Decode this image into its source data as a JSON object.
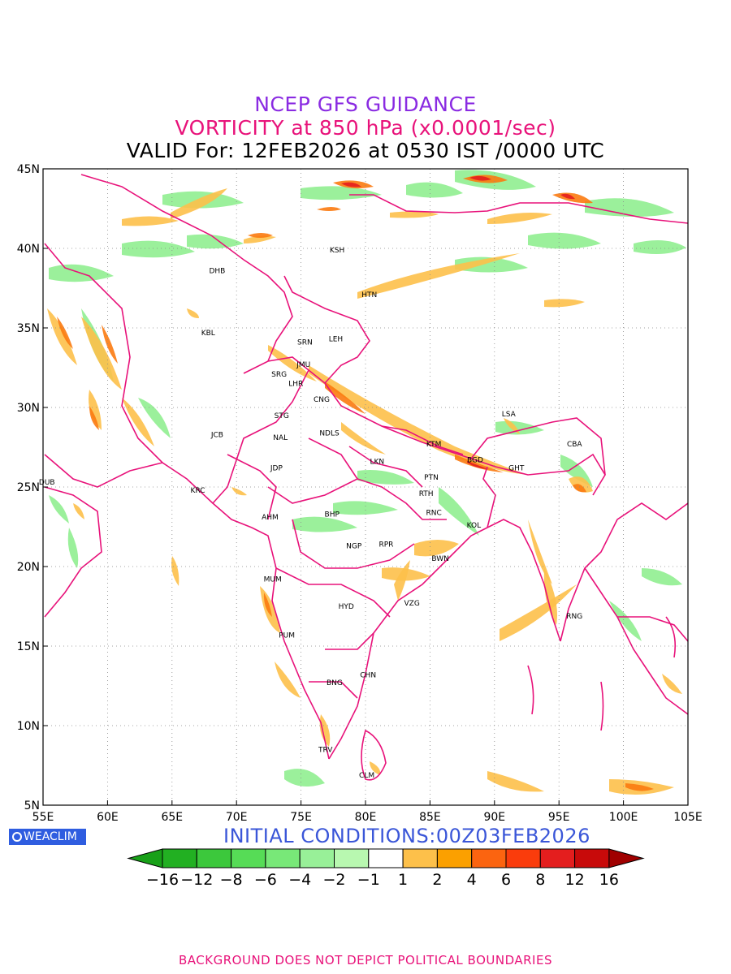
{
  "header": {
    "line1": "NCEP GFS GUIDANCE",
    "line2": "VORTICITY at 850 hPa (x0.0001/sec)",
    "line3": "VALID For: 12FEB2026 at 0530 IST /0000 UTC"
  },
  "axes": {
    "lon_labels": [
      "55E",
      "60E",
      "65E",
      "70E",
      "75E",
      "80E",
      "85E",
      "90E",
      "95E",
      "100E",
      "105E"
    ],
    "lat_labels": [
      "5N",
      "10N",
      "15N",
      "20N",
      "25N",
      "30N",
      "35N",
      "40N",
      "45N"
    ],
    "lon_range": [
      55,
      105
    ],
    "lat_range": [
      5,
      45
    ]
  },
  "stations": [
    {
      "code": "KSH",
      "lon": 77.8,
      "lat": 39.9
    },
    {
      "code": "DHB",
      "lon": 68.5,
      "lat": 38.6
    },
    {
      "code": "HTN",
      "lon": 80.3,
      "lat": 37.1
    },
    {
      "code": "KBL",
      "lon": 67.8,
      "lat": 34.7
    },
    {
      "code": "SRN",
      "lon": 75.3,
      "lat": 34.1
    },
    {
      "code": "LEH",
      "lon": 77.7,
      "lat": 34.3
    },
    {
      "code": "JMU",
      "lon": 75.2,
      "lat": 32.7
    },
    {
      "code": "SRG",
      "lon": 73.3,
      "lat": 32.1
    },
    {
      "code": "LHR",
      "lon": 74.6,
      "lat": 31.5
    },
    {
      "code": "CNG",
      "lon": 76.6,
      "lat": 30.5
    },
    {
      "code": "STG",
      "lon": 73.5,
      "lat": 29.5
    },
    {
      "code": "LSA",
      "lon": 91.1,
      "lat": 29.6
    },
    {
      "code": "JCB",
      "lon": 68.5,
      "lat": 28.3
    },
    {
      "code": "NAL",
      "lon": 73.4,
      "lat": 28.1
    },
    {
      "code": "NDLS",
      "lon": 77.2,
      "lat": 28.4
    },
    {
      "code": "KTM",
      "lon": 85.3,
      "lat": 27.7
    },
    {
      "code": "CBA",
      "lon": 96.2,
      "lat": 27.7
    },
    {
      "code": "BGD",
      "lon": 88.5,
      "lat": 26.7
    },
    {
      "code": "LKN",
      "lon": 80.9,
      "lat": 26.6
    },
    {
      "code": "GHT",
      "lon": 91.7,
      "lat": 26.2
    },
    {
      "code": "JDP",
      "lon": 73.1,
      "lat": 26.2
    },
    {
      "code": "PTN",
      "lon": 85.1,
      "lat": 25.6
    },
    {
      "code": "DUB",
      "lon": 55.3,
      "lat": 25.3
    },
    {
      "code": "RTH",
      "lon": 84.7,
      "lat": 24.6
    },
    {
      "code": "KRC",
      "lon": 67.0,
      "lat": 24.8
    },
    {
      "code": "BHP",
      "lon": 77.4,
      "lat": 23.3
    },
    {
      "code": "AHM",
      "lon": 72.6,
      "lat": 23.1
    },
    {
      "code": "RNC",
      "lon": 85.3,
      "lat": 23.4
    },
    {
      "code": "KOL",
      "lon": 88.4,
      "lat": 22.6
    },
    {
      "code": "NGP",
      "lon": 79.1,
      "lat": 21.3
    },
    {
      "code": "RPR",
      "lon": 81.6,
      "lat": 21.4
    },
    {
      "code": "BWN",
      "lon": 85.8,
      "lat": 20.5
    },
    {
      "code": "MUM",
      "lon": 72.8,
      "lat": 19.2
    },
    {
      "code": "HYD",
      "lon": 78.5,
      "lat": 17.5
    },
    {
      "code": "VZG",
      "lon": 83.6,
      "lat": 17.7
    },
    {
      "code": "RNG",
      "lon": 96.2,
      "lat": 16.9
    },
    {
      "code": "PUM",
      "lon": 73.9,
      "lat": 15.7
    },
    {
      "code": "CHN",
      "lon": 80.2,
      "lat": 13.2
    },
    {
      "code": "BNG",
      "lon": 77.6,
      "lat": 12.7
    },
    {
      "code": "TRV",
      "lon": 76.9,
      "lat": 8.5
    },
    {
      "code": "CLM",
      "lon": 80.1,
      "lat": 6.9
    }
  ],
  "colorbar": {
    "labels": [
      "-16",
      "-12",
      "-8",
      "-6",
      "-4",
      "-2",
      "-1",
      "1",
      "2",
      "4",
      "6",
      "8",
      "12",
      "16"
    ],
    "colors": [
      "#18a018",
      "#22b022",
      "#3cc83c",
      "#56dc56",
      "#78e878",
      "#98f098",
      "#b8f8b0",
      "#ffffff",
      "#fdc04a",
      "#fba000",
      "#fb6410",
      "#fa3c0c",
      "#e41e1e",
      "#c80a0a",
      "#a00000"
    ]
  },
  "colors": {
    "boundary": "#e8127a",
    "title1": "#8a2be2",
    "title2": "#e8127a",
    "init": "#3a56d8",
    "logo_bg": "#2f5de0"
  },
  "logo_text": "WEACLIM",
  "init_conditions": "INITIAL CONDITIONS:00Z03FEB2026",
  "footer": "BACKGROUND DOES NOT DEPICT POLITICAL BOUNDARIES"
}
